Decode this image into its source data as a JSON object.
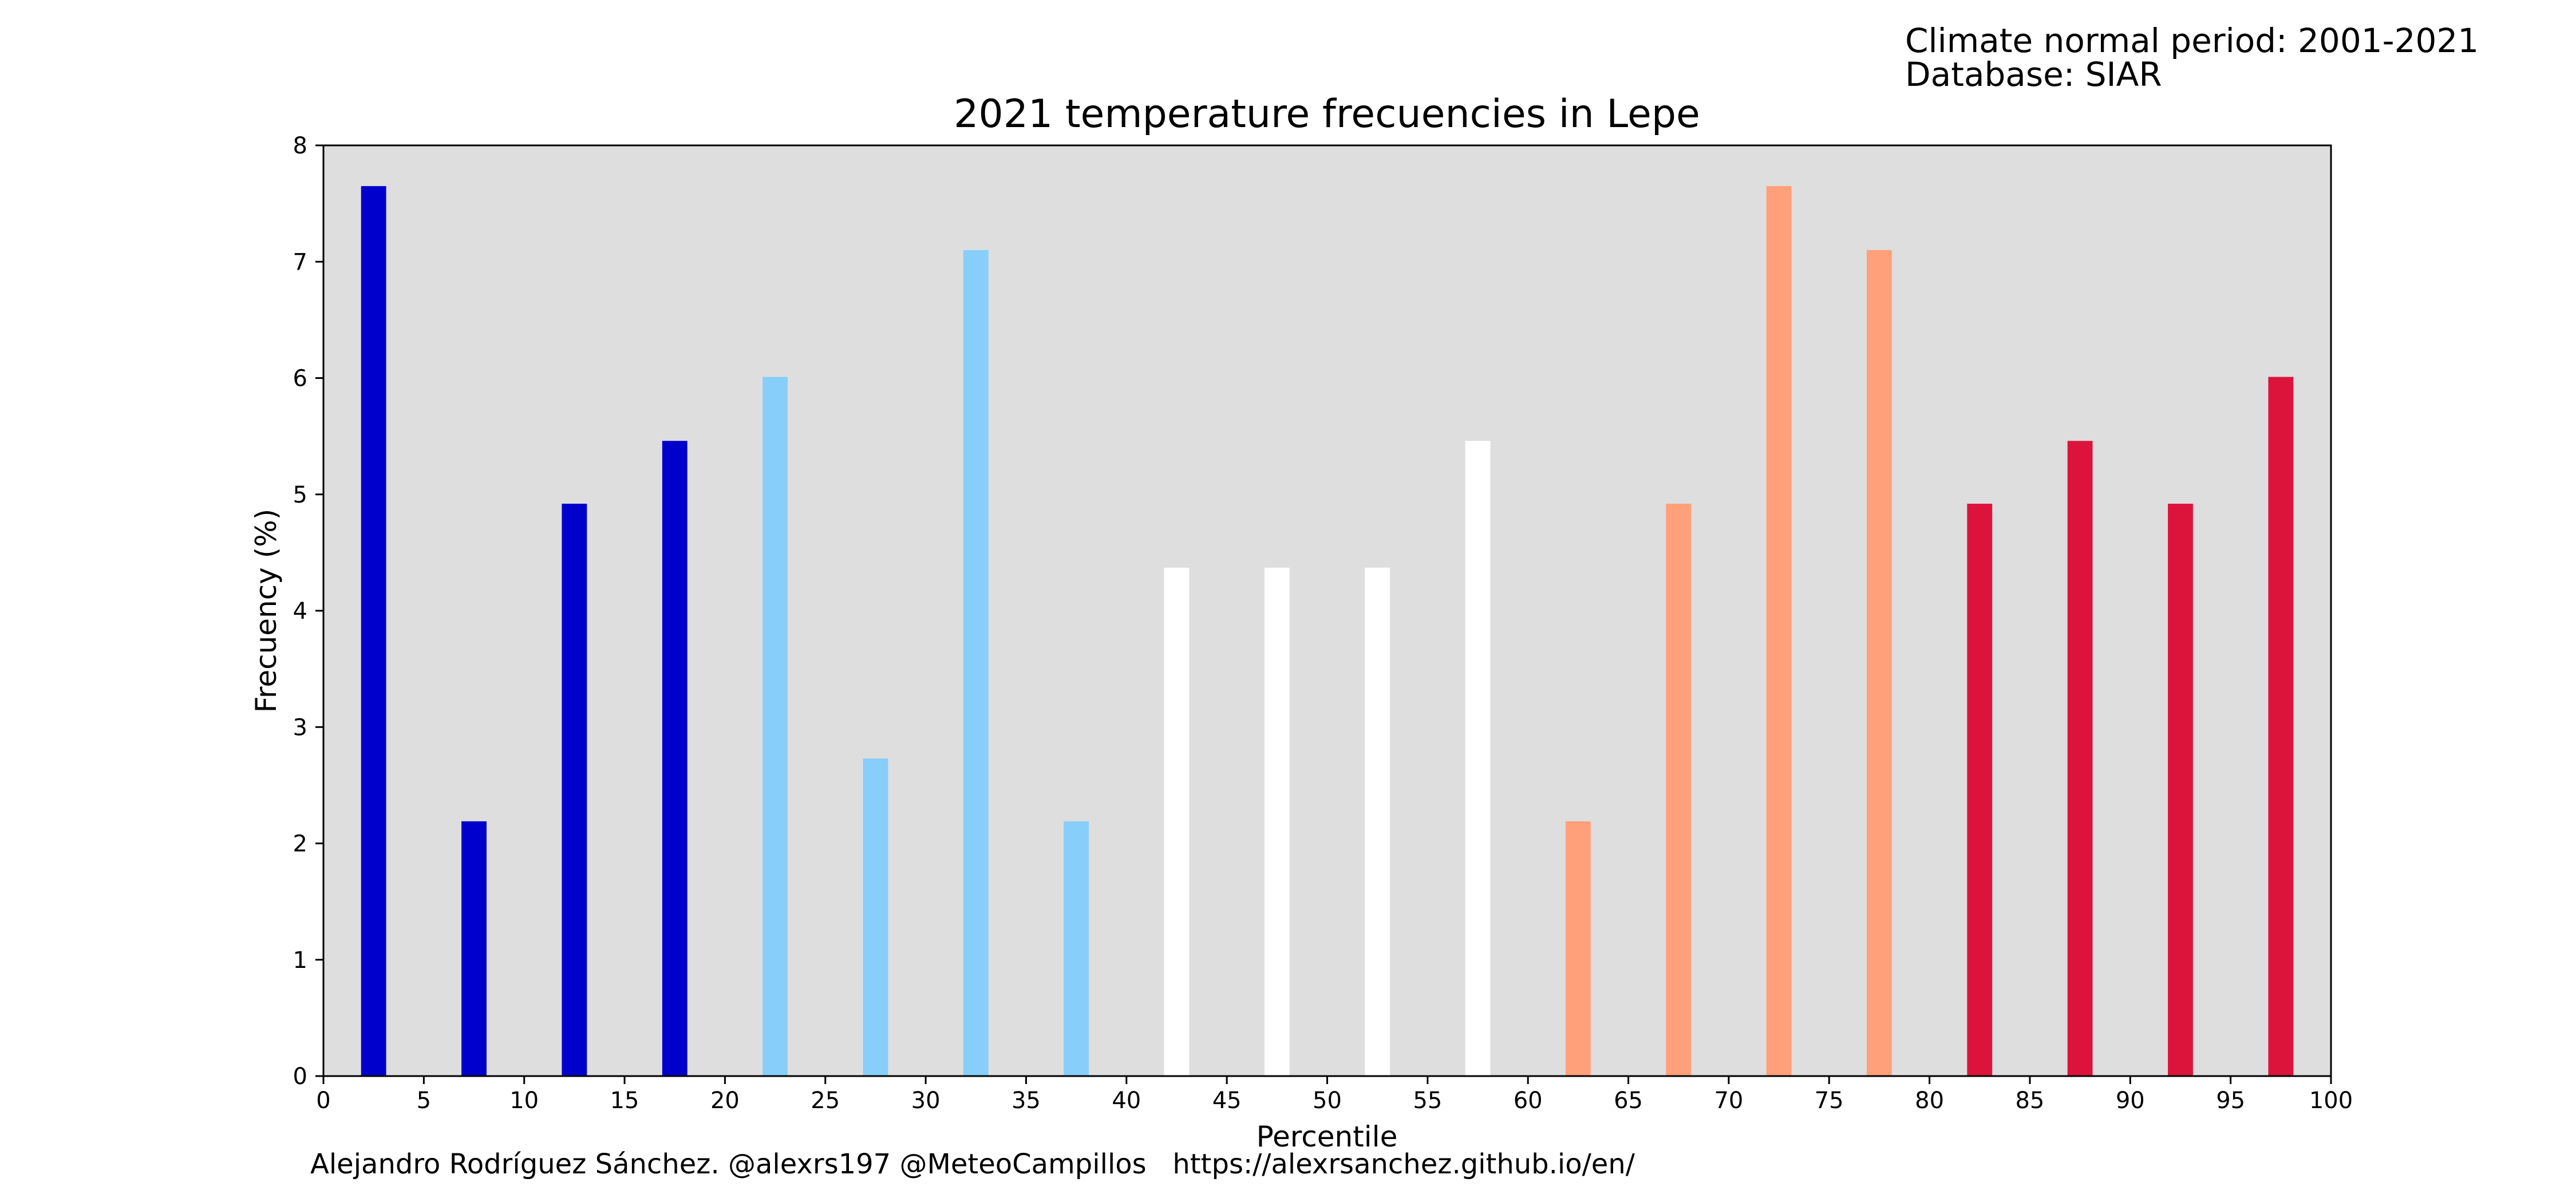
{
  "header": {
    "climate_normal": "Climate normal period: 2001-2021",
    "database": "Database: SIAR"
  },
  "footer": {
    "credit": "Alejandro Rodríguez Sánchez. @alexrs197 @MeteoCampillos   https://alexrsanchez.github.io/en/"
  },
  "chart_data": {
    "type": "bar",
    "title": "2021 temperature frecuencies in Lepe",
    "xlabel": "Percentile",
    "ylabel": "Frecuency (%)",
    "xlim": [
      0,
      100
    ],
    "ylim": [
      0,
      8
    ],
    "xticks": [
      0,
      5,
      10,
      15,
      20,
      25,
      30,
      35,
      40,
      45,
      50,
      55,
      60,
      65,
      70,
      75,
      80,
      85,
      90,
      95,
      100
    ],
    "yticks": [
      0,
      1,
      2,
      3,
      4,
      5,
      6,
      7,
      8
    ],
    "grid": false,
    "background": "#dedede",
    "x": [
      2.5,
      7.5,
      12.5,
      17.5,
      22.5,
      27.5,
      32.5,
      37.5,
      42.5,
      47.5,
      52.5,
      57.5,
      62.5,
      67.5,
      72.5,
      77.5,
      82.5,
      87.5,
      92.5,
      97.5
    ],
    "values": [
      7.65,
      2.19,
      4.92,
      5.46,
      6.01,
      2.73,
      7.1,
      2.19,
      4.37,
      4.37,
      4.37,
      5.46,
      2.19,
      4.92,
      7.65,
      7.1,
      4.92,
      5.46,
      4.92,
      6.01
    ],
    "bar_width": 1.25,
    "colors": [
      "#0000cd",
      "#0000cd",
      "#0000cd",
      "#0000cd",
      "#87cefa",
      "#87cefa",
      "#87cefa",
      "#87cefa",
      "#ffffff",
      "#ffffff",
      "#ffffff",
      "#ffffff",
      "#ffa07a",
      "#ffa07a",
      "#ffa07a",
      "#ffa07a",
      "#dc143c",
      "#dc143c",
      "#dc143c",
      "#dc143c"
    ]
  }
}
